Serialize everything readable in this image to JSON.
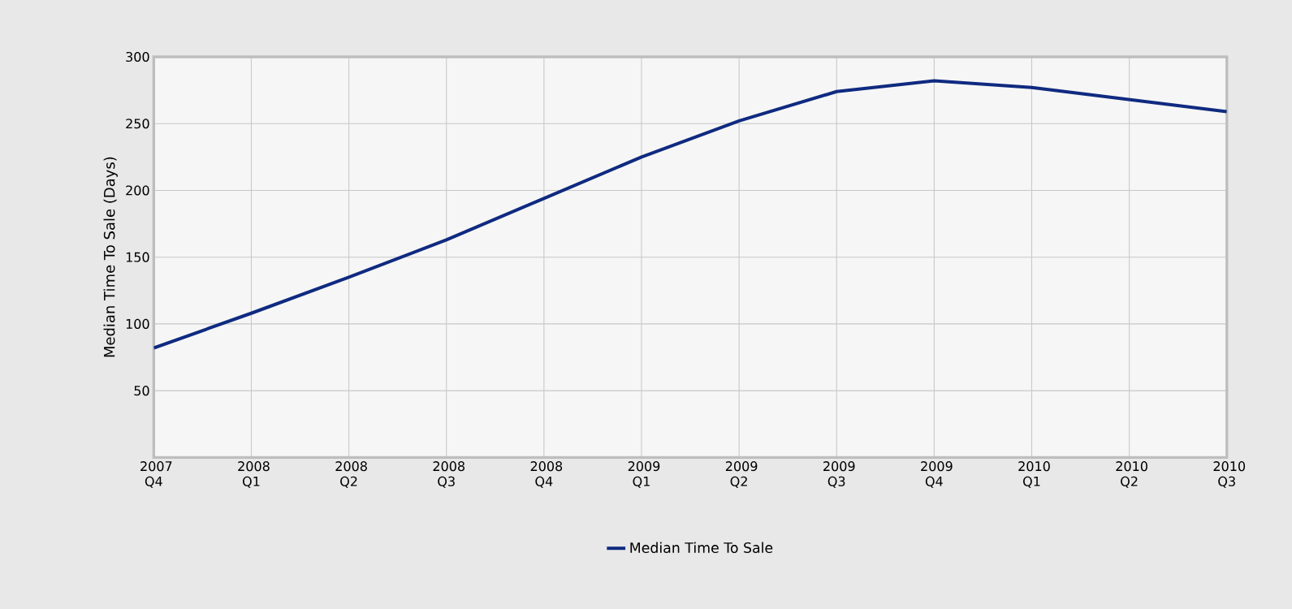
{
  "chart_data": {
    "type": "line",
    "ylabel": "Median Time To Sale (Days)",
    "categories": [
      "2007 Q4",
      "2008 Q1",
      "2008 Q2",
      "2008 Q3",
      "2008 Q4",
      "2009 Q1",
      "2009 Q2",
      "2009 Q3",
      "2009 Q4",
      "2010 Q1",
      "2010 Q2",
      "2010 Q3"
    ],
    "series": [
      {
        "name": "Median Time To Sale",
        "color": "#0f2a80",
        "values": [
          82,
          108,
          135,
          163,
          194,
          225,
          252,
          274,
          282,
          277,
          268,
          259
        ]
      }
    ],
    "ylim": [
      0,
      300
    ],
    "yticks": [
      50,
      100,
      150,
      200,
      250,
      300
    ],
    "grid": true,
    "legend": "bottom",
    "marker": "none",
    "line_style": "solid"
  }
}
